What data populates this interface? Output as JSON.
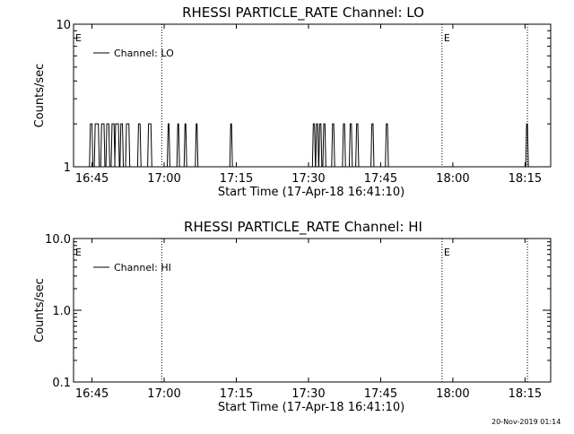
{
  "chart_data": [
    {
      "type": "line",
      "title": "RHESSI PARTICLE_RATE Channel: LO",
      "xlabel": "Start Time (17-Apr-18 16:41:10)",
      "ylabel": "Counts/sec",
      "yscale": "log",
      "ylim": [
        1,
        10
      ],
      "yticks": [
        "1",
        "10"
      ],
      "xlim": [
        "16:41:10",
        "18:20:20"
      ],
      "xticks": [
        "16:45",
        "17:00",
        "17:15",
        "17:30",
        "17:45",
        "18:00",
        "18:15"
      ],
      "legend": {
        "placement": "top-left",
        "entries": [
          "Channel: LO"
        ]
      },
      "markers": [
        {
          "time": "16:41:10",
          "label": "E"
        },
        {
          "time": "16:59:30",
          "label": ""
        },
        {
          "time": "17:57:45",
          "label": "E"
        },
        {
          "time": "18:15:30",
          "label": ""
        }
      ],
      "series": [
        {
          "name": "Channel: LO",
          "bursts": [
            {
              "start": "16:44:40",
              "end": "16:45:00",
              "value": 2
            },
            {
              "start": "16:45:40",
              "end": "16:46:20",
              "value": 2
            },
            {
              "start": "16:47:00",
              "end": "16:47:30",
              "value": 2
            },
            {
              "start": "16:48:05",
              "end": "16:48:30",
              "value": 2
            },
            {
              "start": "16:49:10",
              "end": "16:49:35",
              "value": 2
            },
            {
              "start": "16:49:55",
              "end": "16:50:30",
              "value": 2
            },
            {
              "start": "16:51:00",
              "end": "16:51:20",
              "value": 2
            },
            {
              "start": "16:52:10",
              "end": "16:52:40",
              "value": 2
            },
            {
              "start": "16:54:40",
              "end": "16:55:00",
              "value": 2
            },
            {
              "start": "16:56:45",
              "end": "16:57:15",
              "value": 2
            },
            {
              "start": "17:00:50",
              "end": "17:01:00",
              "value": 2
            },
            {
              "start": "17:02:50",
              "end": "17:03:00",
              "value": 2
            },
            {
              "start": "17:04:20",
              "end": "17:04:30",
              "value": 2
            },
            {
              "start": "17:06:40",
              "end": "17:06:50",
              "value": 2
            },
            {
              "start": "17:13:50",
              "end": "17:14:00",
              "value": 2
            },
            {
              "start": "17:31:00",
              "end": "17:31:15",
              "value": 2
            },
            {
              "start": "17:31:40",
              "end": "17:31:55",
              "value": 2
            },
            {
              "start": "17:32:20",
              "end": "17:32:35",
              "value": 2
            },
            {
              "start": "17:33:10",
              "end": "17:33:25",
              "value": 2
            },
            {
              "start": "17:35:00",
              "end": "17:35:15",
              "value": 2
            },
            {
              "start": "17:37:15",
              "end": "17:37:30",
              "value": 2
            },
            {
              "start": "17:38:40",
              "end": "17:38:55",
              "value": 2
            },
            {
              "start": "17:40:00",
              "end": "17:40:15",
              "value": 2
            },
            {
              "start": "17:43:10",
              "end": "17:43:25",
              "value": 2
            },
            {
              "start": "17:46:10",
              "end": "17:46:25",
              "value": 2
            },
            {
              "start": "18:15:20",
              "end": "18:15:30",
              "value": 2
            }
          ]
        }
      ]
    },
    {
      "type": "line",
      "title": "RHESSI PARTICLE_RATE Channel: HI",
      "xlabel": "Start Time (17-Apr-18 16:41:10)",
      "ylabel": "Counts/sec",
      "yscale": "log",
      "ylim": [
        0.1,
        10
      ],
      "yticks": [
        "0.1",
        "1.0",
        "10.0"
      ],
      "xlim": [
        "16:41:10",
        "18:20:20"
      ],
      "xticks": [
        "16:45",
        "17:00",
        "17:15",
        "17:30",
        "17:45",
        "18:00",
        "18:15"
      ],
      "legend": {
        "placement": "top-left",
        "entries": [
          "Channel: HI"
        ]
      },
      "markers": [
        {
          "time": "16:41:10",
          "label": "E"
        },
        {
          "time": "16:59:30",
          "label": ""
        },
        {
          "time": "17:57:45",
          "label": "E"
        },
        {
          "time": "18:15:30",
          "label": ""
        }
      ],
      "series": [
        {
          "name": "Channel: HI",
          "bursts": []
        }
      ]
    }
  ],
  "footer": {
    "timestamp": "20-Nov-2019 01:14"
  }
}
